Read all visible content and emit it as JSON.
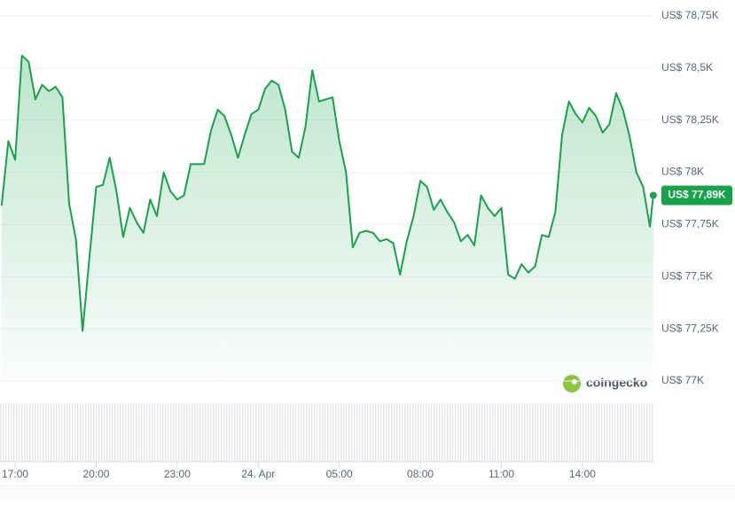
{
  "chart_data": {
    "type": "line",
    "color": "#16a34a",
    "x": [
      16.5,
      16.75,
      17,
      17.25,
      17.5,
      17.75,
      18,
      18.25,
      18.5,
      18.75,
      19,
      19.25,
      19.5,
      19.75,
      20,
      20.25,
      20.5,
      20.75,
      21,
      21.25,
      21.5,
      21.75,
      22,
      22.25,
      22.5,
      22.75,
      23,
      23.25,
      23.5,
      23.75,
      24,
      24.25,
      24.5,
      24.75,
      25,
      25.25,
      25.5,
      25.75,
      26,
      26.25,
      26.5,
      26.75,
      27,
      27.25,
      27.5,
      27.75,
      28,
      28.25,
      28.5,
      28.75,
      29,
      29.25,
      29.5,
      29.75,
      30,
      30.25,
      30.5,
      30.75,
      31,
      31.25,
      31.5,
      31.75,
      32,
      32.25,
      32.5,
      32.75,
      33,
      33.25,
      33.5,
      33.75,
      34,
      34.25,
      34.5,
      34.75,
      35,
      35.25,
      35.5,
      35.75,
      36,
      36.25,
      36.5,
      36.75,
      37,
      37.25,
      37.5,
      37.75,
      38,
      38.25,
      38.5,
      38.75,
      39,
      39.25,
      39.5,
      39.75,
      40,
      40.25,
      40.5,
      40.625
    ],
    "values": [
      77840,
      78150,
      78060,
      78560,
      78530,
      78350,
      78420,
      78390,
      78410,
      78360,
      77850,
      77680,
      77240,
      77590,
      77930,
      77940,
      78070,
      77910,
      77690,
      77830,
      77760,
      77710,
      77870,
      77790,
      78000,
      77910,
      77870,
      77890,
      78040,
      78040,
      78040,
      78200,
      78300,
      78270,
      78180,
      78070,
      78180,
      78280,
      78300,
      78400,
      78440,
      78420,
      78300,
      78100,
      78070,
      78220,
      78490,
      78340,
      78350,
      78360,
      78150,
      78000,
      77640,
      77710,
      77720,
      77710,
      77670,
      77680,
      77660,
      77510,
      77670,
      77790,
      77960,
      77930,
      77820,
      77870,
      77810,
      77760,
      77670,
      77700,
      77650,
      77890,
      77830,
      77790,
      77830,
      77510,
      77490,
      77560,
      77520,
      77550,
      77700,
      77690,
      77810,
      78180,
      78340,
      78280,
      78240,
      78310,
      78270,
      78190,
      78230,
      78380,
      78300,
      78170,
      78000,
      77930,
      77740,
      77890
    ],
    "value_labels": [
      null,
      null,
      null,
      null,
      null,
      null,
      null,
      null,
      null,
      null,
      null,
      null,
      null,
      null,
      null,
      null,
      null,
      null,
      null,
      null,
      null,
      null,
      null,
      null,
      null,
      null,
      null,
      null,
      null,
      null,
      null,
      null,
      null,
      null,
      null,
      null,
      null,
      null,
      null,
      null,
      null,
      null,
      null,
      null,
      null,
      null,
      null,
      null,
      null,
      null,
      null,
      null,
      null,
      null,
      null,
      null,
      null,
      null,
      null,
      null,
      null,
      null,
      null,
      null,
      null,
      null,
      null,
      null,
      null,
      null,
      null,
      null,
      null,
      null,
      null,
      null,
      null,
      null,
      null,
      null,
      null,
      null,
      null,
      null,
      null,
      null,
      null,
      null,
      null,
      null,
      null,
      null,
      null,
      null,
      null,
      null,
      null,
      "US$ 77,89K"
    ],
    "xlim": [
      16.44,
      40.63
    ],
    "xticks": [
      {
        "value": 17,
        "label": "17:00"
      },
      {
        "value": 20,
        "label": "20:00"
      },
      {
        "value": 23,
        "label": "23:00"
      },
      {
        "value": 26,
        "label": "24. Apr"
      },
      {
        "value": 29,
        "label": "05:00"
      },
      {
        "value": 32,
        "label": "08:00"
      },
      {
        "value": 35,
        "label": "11:00"
      },
      {
        "value": 38,
        "label": "14:00"
      }
    ],
    "ylim": [
      77000,
      78750
    ],
    "yticks": [
      {
        "value": 77000,
        "label": "US$ 77K"
      },
      {
        "value": 77250,
        "label": "US$ 77,25K"
      },
      {
        "value": 77500,
        "label": "US$ 77,5K"
      },
      {
        "value": 77750,
        "label": "US$ 77,75K"
      },
      {
        "value": 78000,
        "label": "US$ 78K"
      },
      {
        "value": 78250,
        "label": "US$ 78,25K"
      },
      {
        "value": 78500,
        "label": "US$ 78,5K"
      },
      {
        "value": 78750,
        "label": "US$ 78,75K"
      }
    ],
    "grid": true,
    "annotations": [
      {
        "text": "coingecko"
      }
    ]
  }
}
